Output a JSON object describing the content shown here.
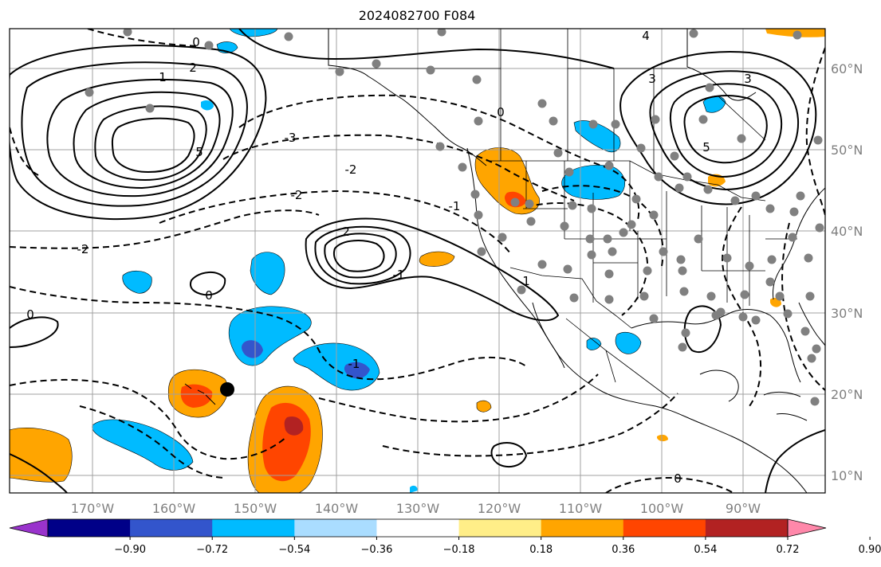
{
  "title": "2024082700 F084",
  "map": {
    "lon_ticks": [
      "170°W",
      "160°W",
      "150°W",
      "140°W",
      "130°W",
      "120°W",
      "110°W",
      "100°W",
      "90°W"
    ],
    "lat_ticks": [
      "60°N",
      "50°N",
      "40°N",
      "30°N",
      "20°N",
      "10°N"
    ],
    "contour_labels": [
      "0",
      "1",
      "2",
      "3",
      "4",
      "5",
      "-2",
      "-3",
      "-1",
      "0",
      "2",
      "1",
      "-2",
      "-1",
      "0",
      "0",
      "5",
      "3",
      "-1",
      "0",
      "-2"
    ]
  },
  "colorbar": {
    "tick_labels": [
      "−0.90",
      "−0.72",
      "−0.54",
      "−0.36",
      "−0.18",
      "0.18",
      "0.36",
      "0.54",
      "0.72",
      "0.90"
    ],
    "colors": [
      "#9933cc",
      "#000088",
      "#3355cc",
      "#00bbff",
      "#aaddff",
      "#ffffff",
      "#ffee88",
      "#ffa500",
      "#ff4500",
      "#b22222",
      "#ff88aa"
    ]
  },
  "colors": {
    "negative_strong": "#3355cc",
    "negative": "#00bbff",
    "positive": "#ffa500",
    "positive_strong": "#ff4500",
    "positive_max": "#b22222",
    "station_dot": "#808080"
  }
}
